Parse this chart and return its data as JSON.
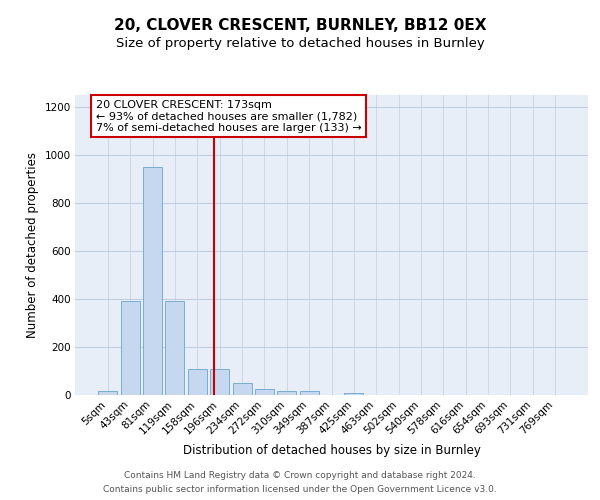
{
  "title": "20, CLOVER CRESCENT, BURNLEY, BB12 0EX",
  "subtitle": "Size of property relative to detached houses in Burnley",
  "xlabel": "Distribution of detached houses by size in Burnley",
  "ylabel": "Number of detached properties",
  "bar_color": "#c5d8f0",
  "bar_edge_color": "#7aadd4",
  "background_color": "#e8eef8",
  "grid_color": "#d0d8e8",
  "categories": [
    "5sqm",
    "43sqm",
    "81sqm",
    "119sqm",
    "158sqm",
    "196sqm",
    "234sqm",
    "272sqm",
    "310sqm",
    "349sqm",
    "387sqm",
    "425sqm",
    "463sqm",
    "502sqm",
    "540sqm",
    "578sqm",
    "616sqm",
    "654sqm",
    "693sqm",
    "731sqm",
    "769sqm"
  ],
  "values": [
    15,
    390,
    950,
    390,
    110,
    110,
    50,
    25,
    15,
    15,
    0,
    10,
    0,
    0,
    0,
    0,
    0,
    0,
    0,
    0,
    0
  ],
  "redline_x": 4.75,
  "annotation_text_line1": "20 CLOVER CRESCENT: 173sqm",
  "annotation_text_line2": "← 93% of detached houses are smaller (1,782)",
  "annotation_text_line3": "7% of semi-detached houses are larger (133) →",
  "annotation_box_color": "#cc0000",
  "ylim": [
    0,
    1250
  ],
  "yticks": [
    0,
    200,
    400,
    600,
    800,
    1000,
    1200
  ],
  "footer_line1": "Contains HM Land Registry data © Crown copyright and database right 2024.",
  "footer_line2": "Contains public sector information licensed under the Open Government Licence v3.0.",
  "title_fontsize": 11,
  "subtitle_fontsize": 9.5,
  "axis_label_fontsize": 8.5,
  "tick_fontsize": 7.5,
  "annotation_fontsize": 8,
  "footer_fontsize": 6.5
}
